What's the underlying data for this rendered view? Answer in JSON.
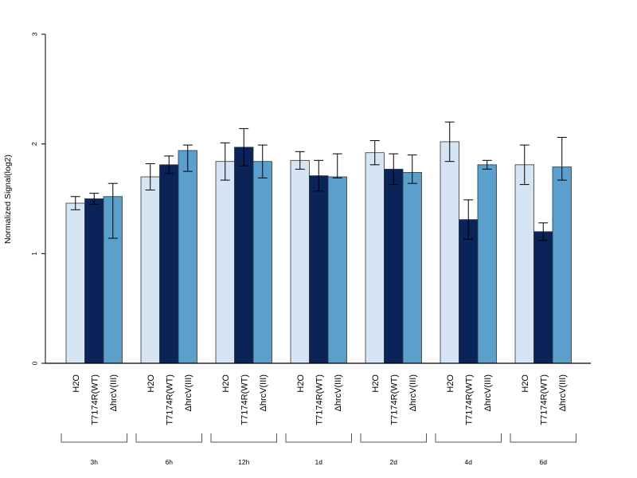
{
  "chart_data": {
    "type": "bar",
    "title": "",
    "ylabel": "Normalized Signal(log2)",
    "xlabel": "",
    "ylim": [
      0,
      3
    ],
    "yticks": [
      "0",
      "1",
      "2",
      "3"
    ],
    "groups": [
      "3h",
      "6h",
      "12h",
      "1d",
      "2d",
      "4d",
      "6d"
    ],
    "series": [
      {
        "name": "H2O",
        "color": "#d6e5f4",
        "values": [
          1.46,
          1.7,
          1.84,
          1.85,
          1.92,
          2.02,
          1.81
        ],
        "error": [
          0.06,
          0.12,
          0.17,
          0.08,
          0.11,
          0.18,
          0.18
        ]
      },
      {
        "name": "T7174R(WT)",
        "color": "#0a2358",
        "values": [
          1.5,
          1.81,
          1.97,
          1.71,
          1.77,
          1.31,
          1.2
        ],
        "error": [
          0.05,
          0.08,
          0.17,
          0.14,
          0.14,
          0.18,
          0.08
        ]
      },
      {
        "name": "ΔhrcV(III)",
        "color": "#5ba0cd",
        "values": [
          1.52,
          1.94,
          1.84,
          1.7,
          1.74,
          1.81,
          1.79
        ],
        "error": [
          0.12,
          0.05,
          0.15,
          0.21,
          0.16,
          0.04,
          0.27
        ],
        "error_low": [
          0.38,
          0.19,
          0.15,
          0.01,
          0.1,
          0.04,
          0.12
        ]
      }
    ],
    "grid": false,
    "legend": "none"
  }
}
